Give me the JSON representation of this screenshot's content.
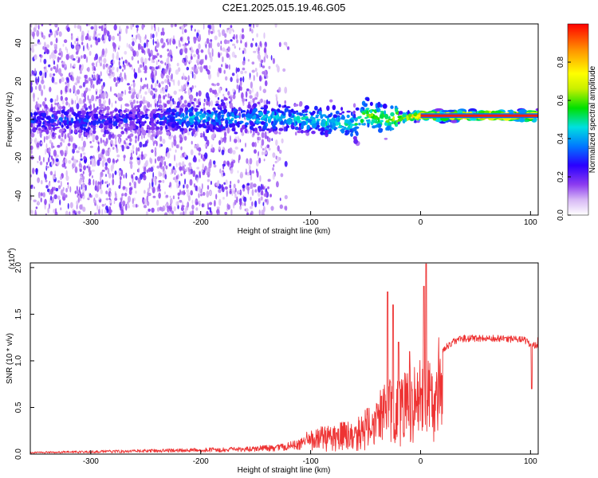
{
  "title": "C2E1.2025.015.19.46.G05",
  "chart_data": [
    {
      "type": "heatmap",
      "xlabel": "Height of straight line (km)",
      "ylabel": "Frequency (Hz)",
      "xlim": [
        -355,
        107
      ],
      "ylim": [
        -50,
        50
      ],
      "x_ticks": [
        "-300",
        "-200",
        "-100",
        "0",
        "100"
      ],
      "x_tick_values": [
        -300,
        -200,
        -100,
        0,
        100
      ],
      "y_ticks": [
        "-40",
        "-20",
        "0",
        "20",
        "40"
      ],
      "y_tick_values": [
        -40,
        -20,
        0,
        20,
        40
      ],
      "colorbar": {
        "label": "Normalized spectral amplitude",
        "ticks": [
          "0.0",
          "0.2",
          "0.4",
          "0.6",
          "0.8"
        ],
        "tick_values": [
          0.0,
          0.2,
          0.4,
          0.6,
          0.8
        ],
        "range": [
          0,
          1
        ],
        "colors": [
          "#ffffff",
          "#d7b8f5",
          "#8c3cf0",
          "#2a00ff",
          "#0078ff",
          "#00e0e0",
          "#00e000",
          "#c8f000",
          "#ffff00",
          "#ff9600",
          "#ff0000"
        ]
      },
      "ridge": [
        {
          "x": -330,
          "f": 0,
          "amp": 0.3
        },
        {
          "x": -300,
          "f": -1,
          "amp": 0.3
        },
        {
          "x": -250,
          "f": 0,
          "amp": 0.25
        },
        {
          "x": -210,
          "f": 1,
          "amp": 0.4
        },
        {
          "x": -150,
          "f": 1,
          "amp": 0.4
        },
        {
          "x": -100,
          "f": 0,
          "amp": 0.45
        },
        {
          "x": -60,
          "f": -3,
          "amp": 0.5
        },
        {
          "x": -50,
          "f": 3,
          "amp": 0.6
        },
        {
          "x": -30,
          "f": 0,
          "amp": 0.6
        },
        {
          "x": 0,
          "f": 2,
          "amp": 0.85
        },
        {
          "x": 50,
          "f": 2,
          "amp": 0.95
        },
        {
          "x": 107,
          "f": 2,
          "amp": 0.95
        }
      ]
    },
    {
      "type": "line",
      "xlabel": "Height of straight line (km)",
      "ylabel": "SNR (10 * v/v)",
      "y_multiplier": "(x10",
      "y_multiplier_exp": "4",
      "y_multiplier_close": ")",
      "xlim": [
        -355,
        107
      ],
      "ylim": [
        0,
        2.05
      ],
      "x_ticks": [
        "-300",
        "-200",
        "-100",
        "0",
        "100"
      ],
      "x_tick_values": [
        -300,
        -200,
        -100,
        0,
        100
      ],
      "y_ticks": [
        "0.0",
        "0.5",
        "1.0",
        "1.5",
        "2.0"
      ],
      "y_tick_values": [
        0.0,
        0.5,
        1.0,
        1.5,
        2.0
      ],
      "line_color": "#ee3333",
      "envelope": [
        {
          "x": -355,
          "y": 0.02
        },
        {
          "x": -300,
          "y": 0.03
        },
        {
          "x": -250,
          "y": 0.04
        },
        {
          "x": -200,
          "y": 0.05
        },
        {
          "x": -160,
          "y": 0.06
        },
        {
          "x": -130,
          "y": 0.08
        },
        {
          "x": -110,
          "y": 0.12
        },
        {
          "x": -100,
          "y": 0.22
        },
        {
          "x": -80,
          "y": 0.28
        },
        {
          "x": -60,
          "y": 0.3
        },
        {
          "x": -45,
          "y": 0.45
        },
        {
          "x": -35,
          "y": 0.6
        },
        {
          "x": -28,
          "y": 0.7
        },
        {
          "x": -20,
          "y": 0.7
        },
        {
          "x": -10,
          "y": 0.75
        },
        {
          "x": 0,
          "y": 0.85
        },
        {
          "x": 10,
          "y": 0.95
        },
        {
          "x": 20,
          "y": 1.15
        },
        {
          "x": 30,
          "y": 1.25
        },
        {
          "x": 40,
          "y": 1.28
        },
        {
          "x": 60,
          "y": 1.28
        },
        {
          "x": 80,
          "y": 1.27
        },
        {
          "x": 95,
          "y": 1.26
        },
        {
          "x": 100,
          "y": 1.2
        },
        {
          "x": 107,
          "y": 1.2
        }
      ],
      "peaks": [
        {
          "x": -30,
          "y": 1.74
        },
        {
          "x": -25,
          "y": 1.6
        },
        {
          "x": -20,
          "y": 1.2
        },
        {
          "x": -10,
          "y": 1.1
        },
        {
          "x": 3,
          "y": 1.8
        },
        {
          "x": 5,
          "y": 2.04
        },
        {
          "x": 101,
          "y": 0.7
        },
        {
          "x": 107,
          "y": 1.25
        }
      ]
    }
  ]
}
